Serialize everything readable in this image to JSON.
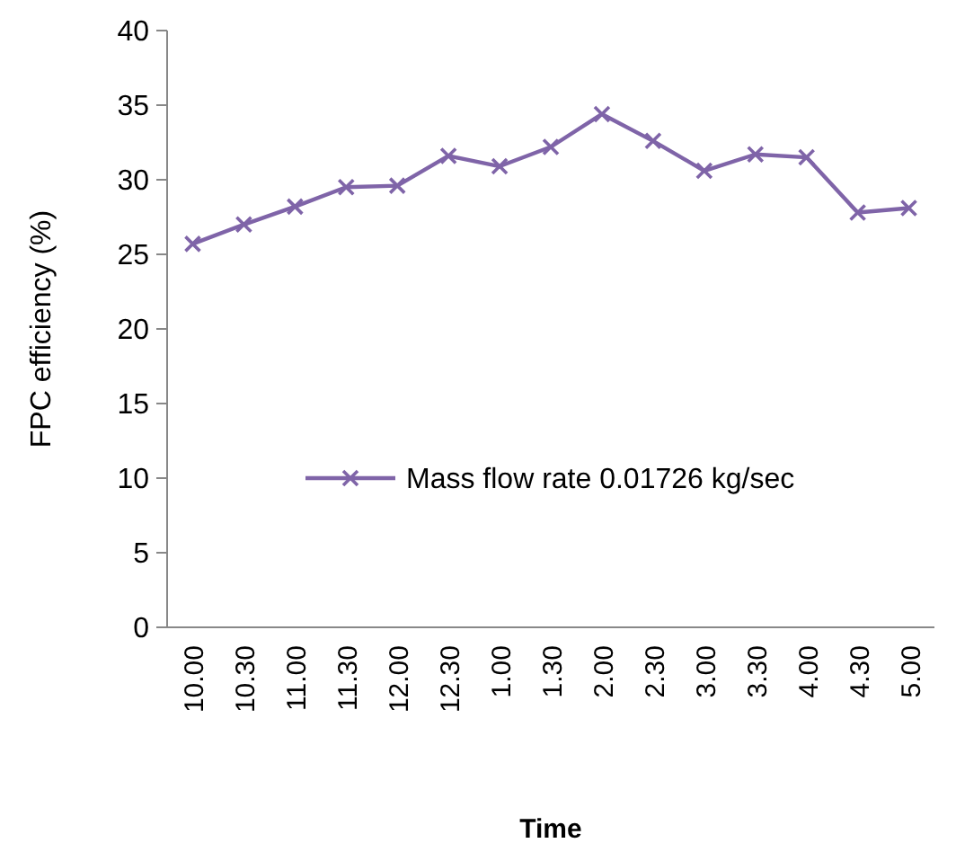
{
  "chart_data": {
    "type": "line",
    "xlabel": "Time",
    "ylabel": "FPC efficiency  (%)",
    "categories": [
      "10.00",
      "10.30",
      "11.00",
      "11.30",
      "12.00",
      "12.30",
      "1.00",
      "1.30",
      "2.00",
      "2.30",
      "3.00",
      "3.30",
      "4.00",
      "4.30",
      "5.00"
    ],
    "series": [
      {
        "name": "Mass flow rate 0.01726 kg/sec",
        "color": "#7f64a8",
        "values": [
          25.7,
          27.0,
          28.2,
          29.5,
          29.6,
          31.6,
          30.9,
          32.2,
          34.4,
          32.6,
          30.6,
          31.7,
          31.5,
          27.8,
          28.1
        ]
      }
    ],
    "ylim": [
      0,
      40
    ],
    "yticks": [
      0,
      5,
      10,
      15,
      20,
      25,
      30,
      35,
      40
    ],
    "grid": false,
    "legend": "right",
    "marker": "cross",
    "line_style": "solid"
  }
}
